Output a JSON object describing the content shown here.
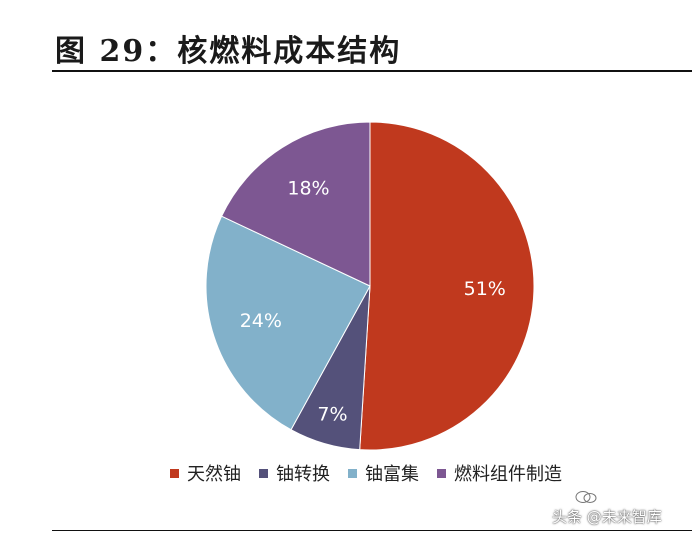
{
  "figure": {
    "title": "图 29：核燃料成本结构"
  },
  "chart_data": {
    "type": "pie",
    "title": "",
    "series": [
      {
        "name": "天然铀",
        "value": 51,
        "label": "51%",
        "color": "#C0391E"
      },
      {
        "name": "铀转换",
        "value": 7,
        "label": "7%",
        "color": "#54517A"
      },
      {
        "name": "铀富集",
        "value": 24,
        "label": "24%",
        "color": "#82B1CA"
      },
      {
        "name": "燃料组件制造",
        "value": 18,
        "label": "18%",
        "color": "#7D5792"
      }
    ],
    "start_angle_deg": 0,
    "direction": "clockwise",
    "legend_position": "bottom"
  },
  "watermark": {
    "text": "头条 @未来智库",
    "logo": "wechat-icon"
  }
}
